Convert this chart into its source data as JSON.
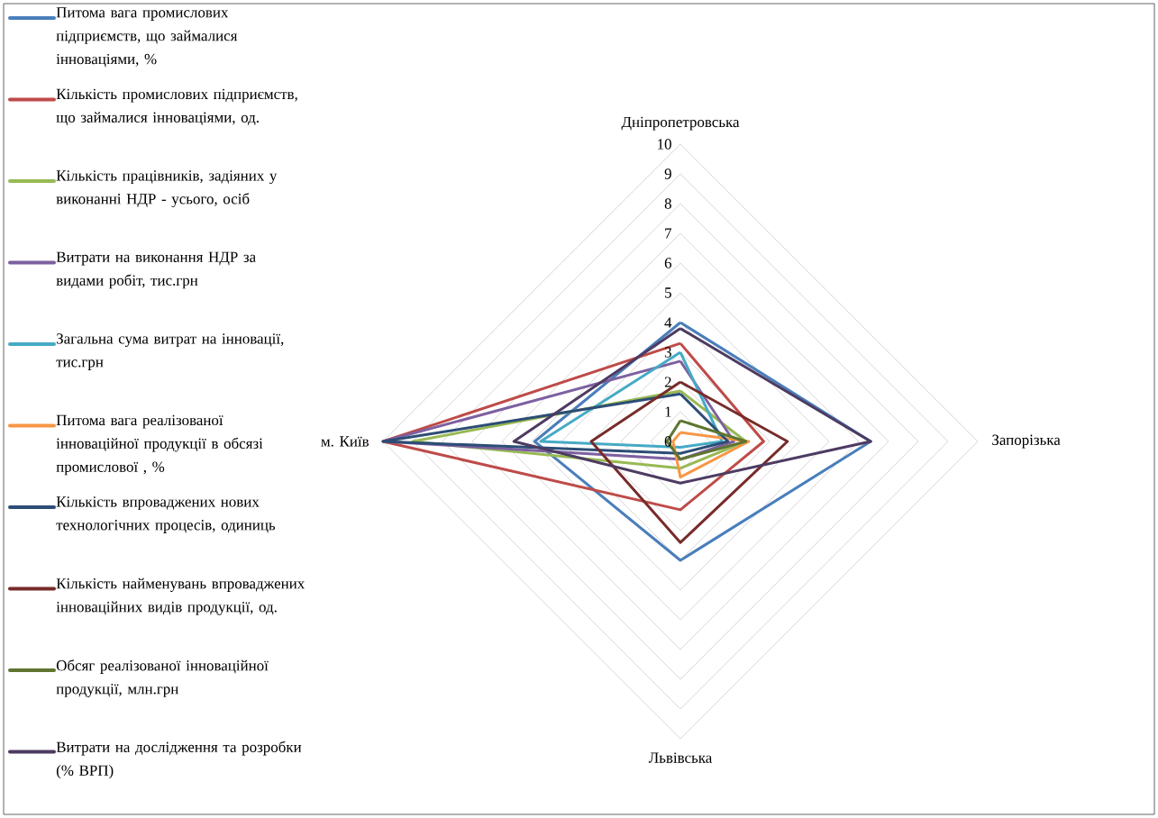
{
  "chart_data": {
    "type": "radar",
    "categories": [
      "Дніпропетровська",
      "Запорізька",
      "Львівська",
      "м. Київ"
    ],
    "ylim": [
      0,
      10
    ],
    "yticks": [
      0,
      1,
      2,
      3,
      4,
      5,
      6,
      7,
      8,
      9,
      10
    ],
    "grid": true,
    "legend": "left",
    "series": [
      {
        "name": "Питома вага промислових підприємств, що займалися інноваціями, %",
        "color": "#4a7ebb",
        "values": [
          4.0,
          6.4,
          4.0,
          4.9
        ]
      },
      {
        "name": "Кількість промислових підприємств, що займалися інноваціями, од.",
        "color": "#be4b48",
        "values": [
          3.3,
          2.8,
          2.3,
          10
        ]
      },
      {
        "name": "Кількість працівників, задіяних у виконанні НДР - усього, осіб",
        "color": "#98b954",
        "values": [
          1.7,
          2.2,
          0.9,
          9
        ]
      },
      {
        "name": "Витрати на виконання НДР за видами робіт, тис.грн",
        "color": "#7d60a0",
        "values": [
          2.7,
          1.8,
          0.6,
          10
        ]
      },
      {
        "name": "Загальна сума витрат на інновації, тис.грн",
        "color": "#46aac5",
        "values": [
          3.0,
          1.4,
          0.2,
          4.7
        ]
      },
      {
        "name": "Питома вага реалізованої інноваційної продукції в обсязі промислової , %",
        "color": "#f79646",
        "values": [
          0.3,
          2.3,
          1.2,
          0.25
        ]
      },
      {
        "name": "Кількість впроваджених нових технологічних процесів, одиниць",
        "color": "#2c4d75",
        "values": [
          1.6,
          1.6,
          0.4,
          10
        ]
      },
      {
        "name": "Кількість найменувань впроваджених інноваційних видів продукції, од.",
        "color": "#772c2a",
        "values": [
          2.0,
          3.6,
          3.4,
          3.0
        ]
      },
      {
        "name": "Обсяг реалізованої інноваційної продукції, млн.грн",
        "color": "#5f7530",
        "values": [
          0.7,
          2.2,
          0.6,
          0.45
        ]
      },
      {
        "name": "Витрати на дослідження та розробки (% ВРП)",
        "color": "#4d3b62",
        "values": [
          3.8,
          6.4,
          1.4,
          5.6
        ]
      }
    ]
  }
}
